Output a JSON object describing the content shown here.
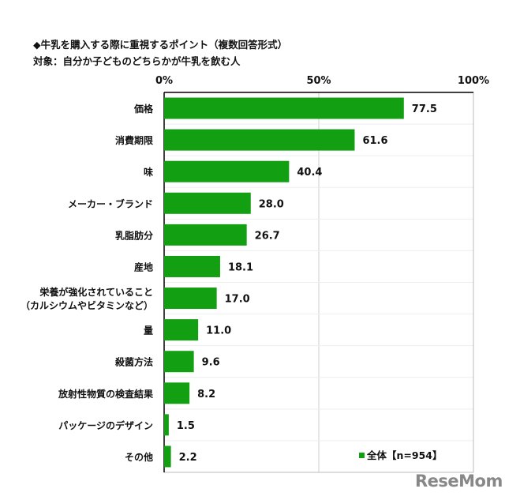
{
  "chart_data": {
    "type": "bar",
    "orientation": "horizontal",
    "title": "◆牛乳を購入する際に重視するポイント（複数回答形式）",
    "subtitle": "対象：自分か子どものどちらかが牛乳を飲む人",
    "categories": [
      "価格",
      "消費期限",
      "味",
      "メーカー・ブランド",
      "乳脂肪分",
      "産地",
      "栄養が強化されていること\n（カルシウムやビタミンなど）",
      "量",
      "殺菌方法",
      "放射性物質の検査結果",
      "パッケージのデザイン",
      "その他"
    ],
    "series": [
      {
        "name": "全体【n=954】",
        "values": [
          77.5,
          61.6,
          40.4,
          28.0,
          26.7,
          18.1,
          17.0,
          11.0,
          9.6,
          8.2,
          1.5,
          2.2
        ],
        "color": "#12a012"
      }
    ],
    "data_labels": [
      "77.5",
      "61.6",
      "40.4",
      "28.0",
      "26.7",
      "18.1",
      "17.0",
      "11.0",
      "9.6",
      "8.2",
      "1.5",
      "2.2"
    ],
    "xlim": [
      0,
      100
    ],
    "xticks": [
      "0%",
      "50%",
      "100%"
    ],
    "xtick_values": [
      0,
      50,
      100
    ],
    "axis_position": "top",
    "legend_position": "bottom-right",
    "grid": "vertical at 50%"
  },
  "watermark": "ReseMom"
}
